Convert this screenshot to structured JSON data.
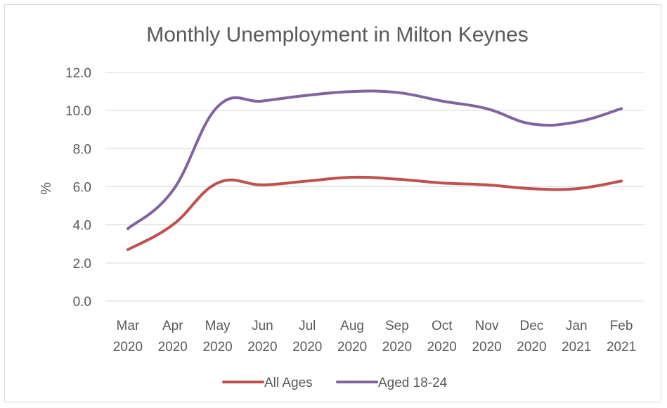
{
  "chart_data": {
    "type": "line",
    "title": "Monthly Unemployment in Milton Keynes",
    "ylabel": "%",
    "xlabel": "",
    "ylim": [
      0,
      12
    ],
    "yticks": [
      "0.0",
      "2.0",
      "4.0",
      "6.0",
      "8.0",
      "10.0",
      "12.0"
    ],
    "categories": [
      [
        "Mar",
        "2020"
      ],
      [
        "Apr",
        "2020"
      ],
      [
        "May",
        "2020"
      ],
      [
        "Jun",
        "2020"
      ],
      [
        "Jul",
        "2020"
      ],
      [
        "Aug",
        "2020"
      ],
      [
        "Sep",
        "2020"
      ],
      [
        "Oct",
        "2020"
      ],
      [
        "Nov",
        "2020"
      ],
      [
        "Dec",
        "2020"
      ],
      [
        "Jan",
        "2021"
      ],
      [
        "Feb",
        "2021"
      ]
    ],
    "series": [
      {
        "name": "All Ages",
        "color": "#c0504d",
        "values": [
          2.7,
          4.0,
          6.2,
          6.1,
          6.3,
          6.5,
          6.4,
          6.2,
          6.1,
          5.9,
          5.9,
          6.3
        ]
      },
      {
        "name": "Aged 18-24",
        "color": "#8064a2",
        "values": [
          3.8,
          5.8,
          10.2,
          10.5,
          10.8,
          11.0,
          10.95,
          10.5,
          10.1,
          9.3,
          9.4,
          10.1
        ]
      }
    ],
    "grid": true,
    "legend": "bottom"
  }
}
